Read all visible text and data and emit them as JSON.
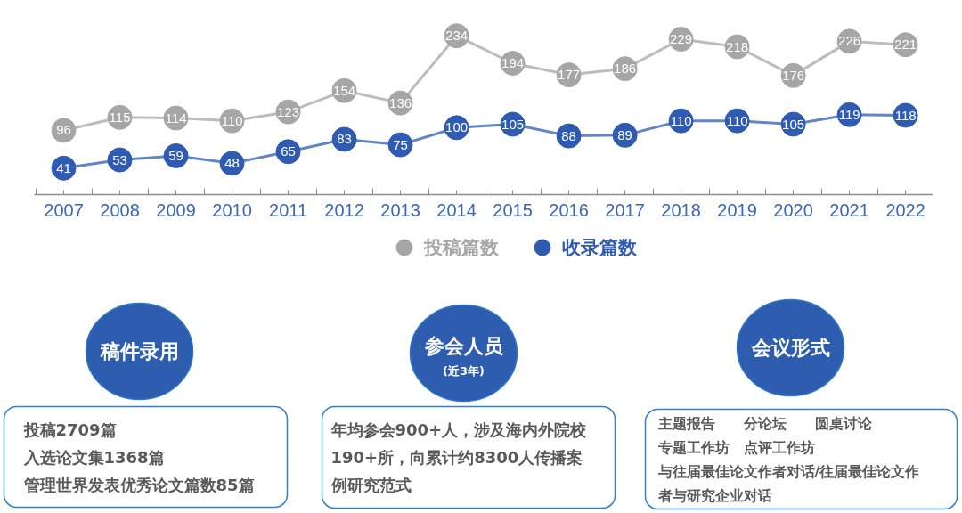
{
  "chart_data": [
    {
      "type": "line",
      "categories": [
        "2007",
        "2008",
        "2009",
        "2010",
        "2011",
        "2012",
        "2013",
        "2014",
        "2015",
        "2016",
        "2017",
        "2018",
        "2019",
        "2020",
        "2021",
        "2022"
      ],
      "series": [
        {
          "name": "投稿篇数",
          "color": "#a6a6a6",
          "values": [
            96,
            115,
            114,
            110,
            123,
            154,
            136,
            234,
            194,
            177,
            186,
            229,
            218,
            176,
            226,
            221
          ]
        },
        {
          "name": "收录篇数",
          "color": "#2f5bb2",
          "values": [
            41,
            53,
            59,
            48,
            65,
            83,
            75,
            100,
            105,
            88,
            89,
            110,
            110,
            105,
            119,
            118
          ]
        }
      ],
      "tick_labels": "x",
      "legend": "bottom",
      "marker": "circle",
      "data_labels": true
    },
    {
      "type": "other",
      "title": "稿件录用",
      "annotations": [
        "投稿2709篇",
        "入选论文集1368篇",
        "管理世界发表优秀论文篇数85篇"
      ]
    },
    {
      "type": "other",
      "title": "参会人员",
      "subtitle": "(近3年)",
      "annotations": [
        "年均参会900+人，涉及海内外院校",
        "190+所，向累计约8300人传播案",
        "例研究范式"
      ]
    },
    {
      "type": "other",
      "title": "会议形式",
      "annotations": [
        "主题报告　　分论坛　　圆桌讨论",
        "专题工作坊　点评工作坊",
        "与往届最佳论文作者对话/往届最佳论文作",
        "者与研究企业对话"
      ]
    }
  ]
}
